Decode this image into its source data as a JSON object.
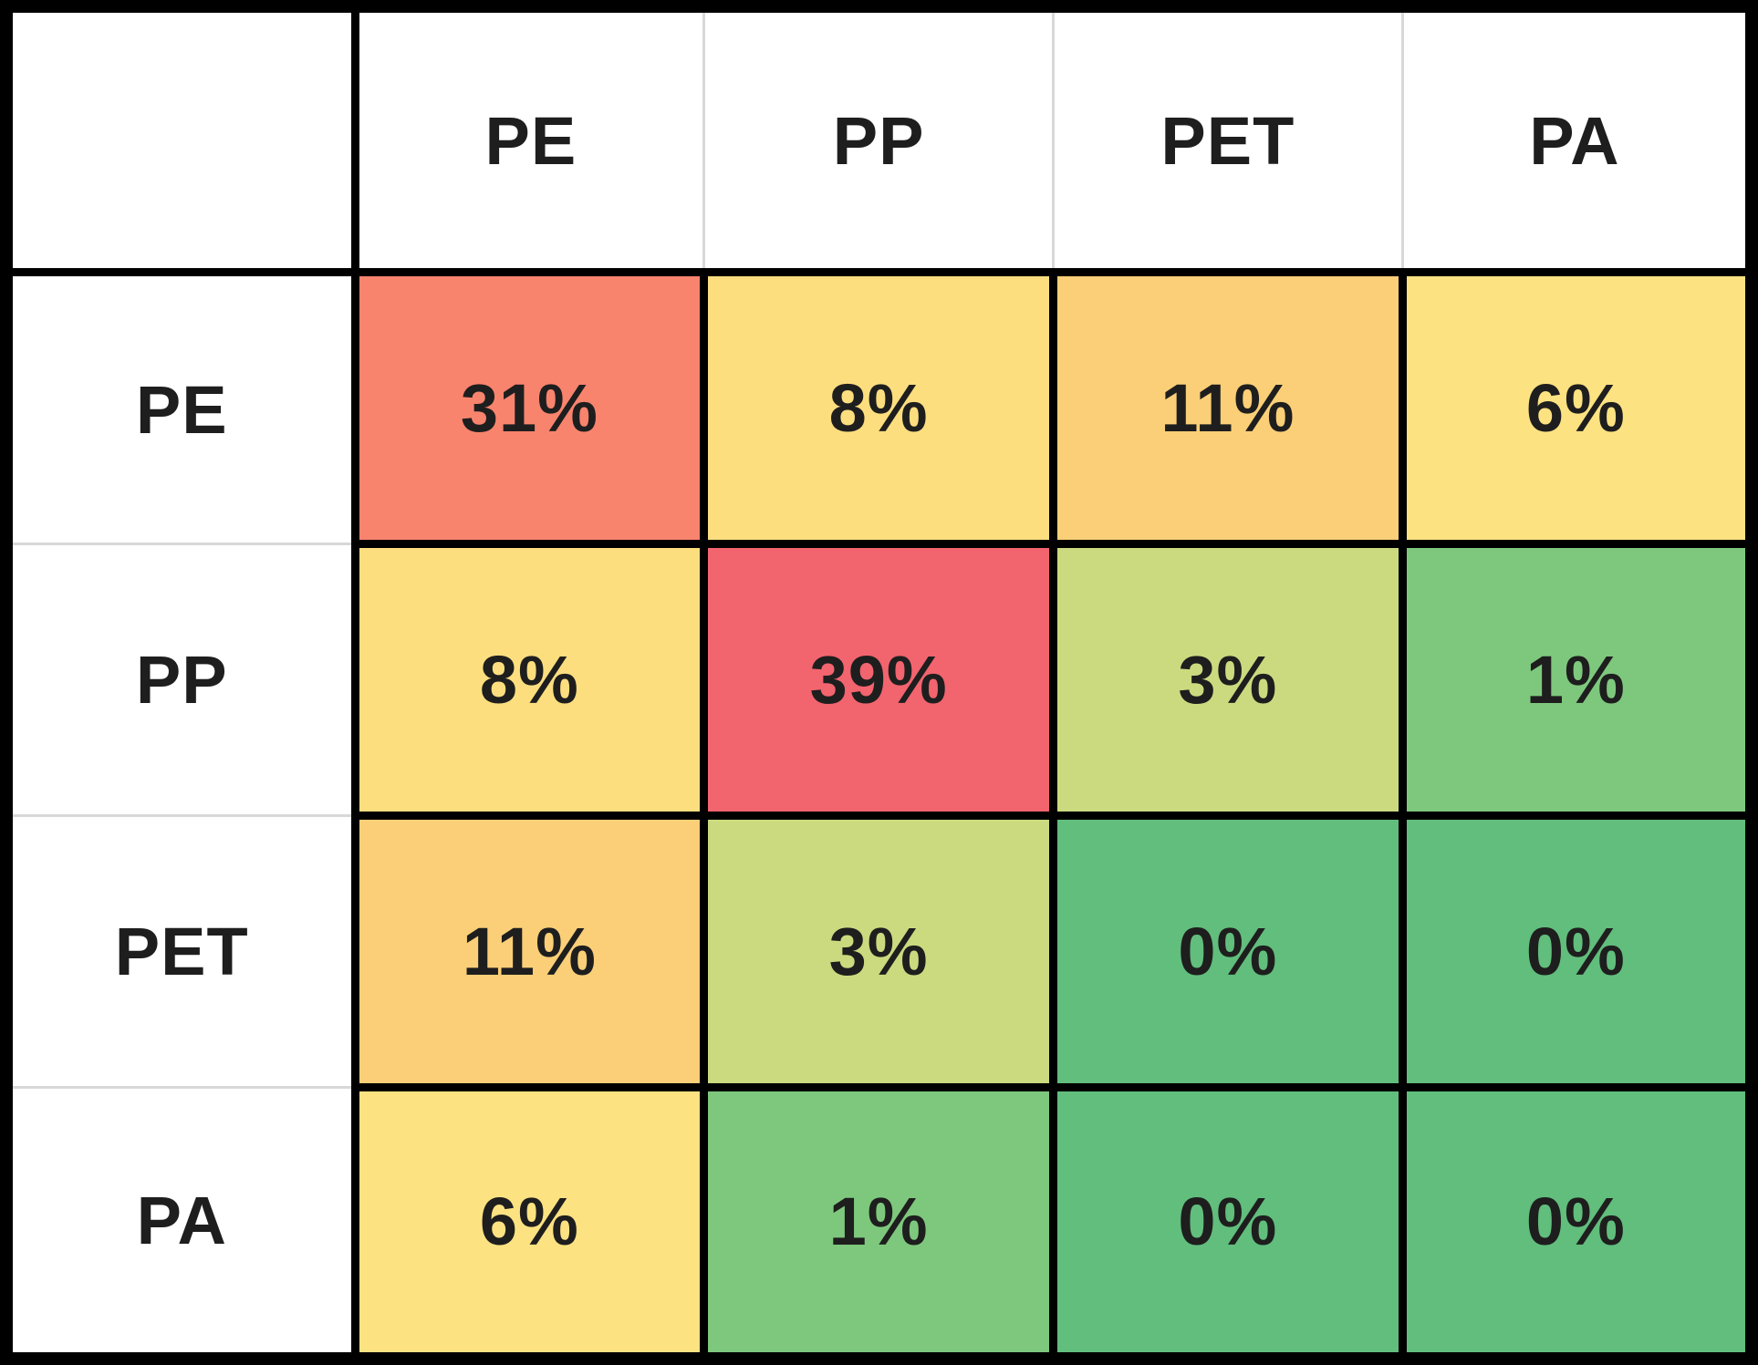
{
  "chart_data": {
    "type": "heatmap",
    "title": "",
    "columns": [
      "PE",
      "PP",
      "PET",
      "PA"
    ],
    "rows": [
      "PE",
      "PP",
      "PET",
      "PA"
    ],
    "corner_label": "",
    "matrix_labels": [
      [
        "31%",
        "8%",
        "11%",
        "6%"
      ],
      [
        "8%",
        "39%",
        "3%",
        "1%"
      ],
      [
        "11%",
        "3%",
        "0%",
        "0%"
      ],
      [
        "6%",
        "1%",
        "0%",
        "0%"
      ]
    ],
    "values_percent": [
      [
        31,
        8,
        11,
        6
      ],
      [
        8,
        39,
        3,
        1
      ],
      [
        11,
        3,
        0,
        0
      ],
      [
        6,
        1,
        0,
        0
      ]
    ],
    "value_range": [
      0,
      39
    ],
    "cell_colors": [
      [
        "#F8846E",
        "#FCDE7F",
        "#FACF77",
        "#FDE282"
      ],
      [
        "#FCDE7F",
        "#F2646E",
        "#CCDA7F",
        "#7EC87D"
      ],
      [
        "#FACF77",
        "#CCDA7F",
        "#61BE7C",
        "#61BE7C"
      ],
      [
        "#FDE282",
        "#7EC87D",
        "#61BE7C",
        "#61BE7C"
      ]
    ],
    "colorscale": {
      "low_color": "#63BE7B",
      "mid_color": "#FFEB84",
      "high_color": "#F8696B"
    },
    "layout": {
      "grid_line_color": "#000000",
      "outer_border_color": "#000000",
      "header_separator_color": "#D8D8D8",
      "text_color": "#1E1E1E",
      "background_color": "#FFFFFF",
      "legend": "none"
    }
  }
}
